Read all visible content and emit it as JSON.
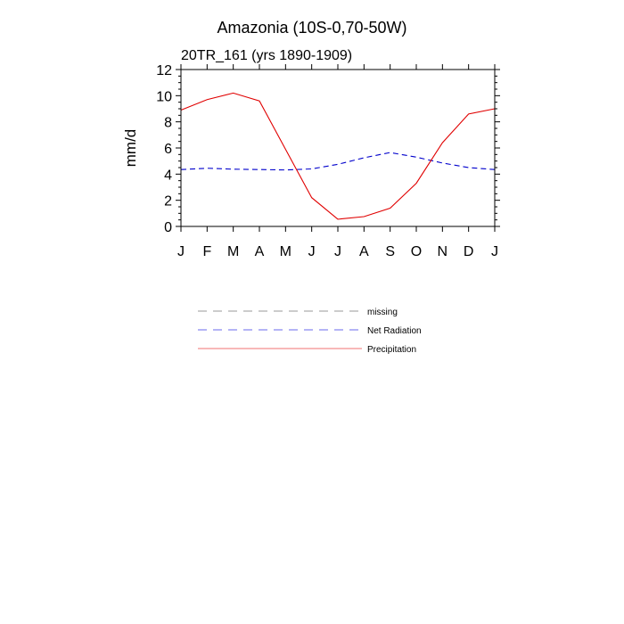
{
  "chart_data": {
    "type": "line",
    "title": "Amazonia (10S-0,70-50W)",
    "subtitle": "20TR_161 (yrs 1890-1909)",
    "xlabel": "",
    "ylabel": "mm/d",
    "categories": [
      "J",
      "F",
      "M",
      "A",
      "M",
      "J",
      "J",
      "A",
      "S",
      "O",
      "N",
      "D",
      "J"
    ],
    "ylim": [
      0,
      12
    ],
    "yticks": [
      "0",
      "2",
      "4",
      "6",
      "8",
      "10",
      "12"
    ],
    "grid": false,
    "legend_position": "bottom",
    "series": [
      {
        "name": "Net Radiation",
        "style": "dashed",
        "color": "#0000cc",
        "values": [
          4.35,
          4.45,
          4.38,
          4.35,
          4.32,
          4.4,
          4.75,
          5.25,
          5.65,
          5.3,
          4.85,
          4.5,
          4.35
        ]
      },
      {
        "name": "Precipitation",
        "style": "solid",
        "color": "#e00000",
        "values": [
          8.9,
          9.7,
          10.2,
          9.6,
          5.9,
          2.2,
          0.55,
          0.75,
          1.4,
          3.3,
          6.4,
          8.6,
          9.0
        ]
      }
    ],
    "legend": [
      {
        "label": "missing",
        "color": "#999999",
        "style": "dashed"
      },
      {
        "label": "Net Radiation",
        "color": "#6a6aee",
        "style": "dashed"
      },
      {
        "label": "Precipitation",
        "color": "#f07070",
        "style": "solid"
      }
    ]
  }
}
